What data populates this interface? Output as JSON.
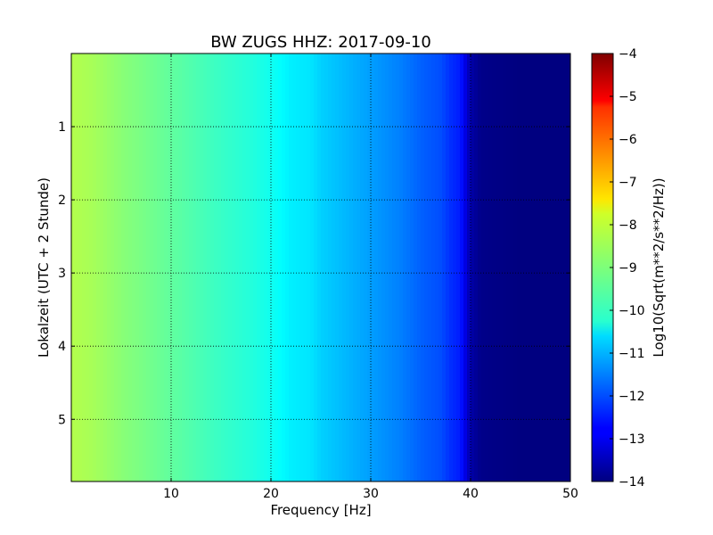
{
  "chart_data": {
    "type": "heatmap",
    "title": "BW ZUGS HHZ: 2017-09-10",
    "xlabel": "Frequency [Hz]",
    "ylabel": "Lokalzeit (UTC + 2 Stunde)",
    "xlim": [
      0,
      50
    ],
    "ylim": [
      5.85,
      0
    ],
    "y_inverted": true,
    "x_ticks": [
      10,
      20,
      30,
      40,
      50
    ],
    "y_ticks": [
      1,
      2,
      3,
      4,
      5
    ],
    "grid": true,
    "colormap": "jet",
    "colorbar": {
      "label": "Log10(Sqrt(m**2/s**2/Hz))",
      "range": [
        -14,
        -4
      ],
      "ticks": [
        -4,
        -5,
        -6,
        -7,
        -8,
        -9,
        -10,
        -11,
        -12,
        -13,
        -14
      ]
    },
    "spectral_profile": {
      "frequency_hz": [
        0,
        2,
        5,
        10,
        15,
        18,
        20,
        22,
        24,
        25,
        27,
        30,
        33,
        35,
        37,
        38,
        39,
        40,
        41,
        45,
        50
      ],
      "log10_amplitude": [
        -8.5,
        -8.6,
        -8.9,
        -9.3,
        -9.7,
        -9.9,
        -10.1,
        -10.4,
        -10.5,
        -10.7,
        -10.9,
        -11.2,
        -11.5,
        -11.8,
        -12.0,
        -12.3,
        -12.5,
        -13.6,
        -13.9,
        -14,
        -14
      ]
    }
  }
}
